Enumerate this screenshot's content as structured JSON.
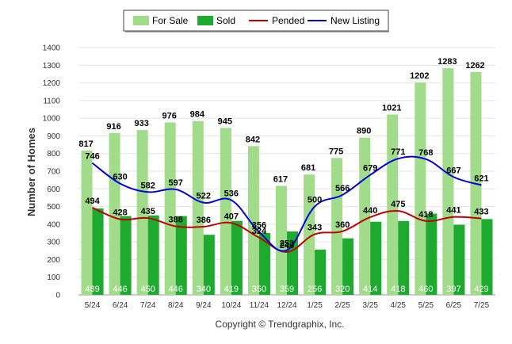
{
  "chart_data": {
    "type": "bar",
    "categories": [
      "5/24",
      "6/24",
      "7/24",
      "8/24",
      "9/24",
      "10/24",
      "11/24",
      "12/24",
      "1/25",
      "2/25",
      "3/25",
      "4/25",
      "5/25",
      "6/25",
      "7/25"
    ],
    "ylabel": "Number of Homes",
    "xlabel": "",
    "ylim": [
      0,
      1400
    ],
    "yticks": [
      0,
      100,
      200,
      300,
      400,
      500,
      600,
      700,
      800,
      900,
      1000,
      1100,
      1200,
      1300,
      1400
    ],
    "grid": true,
    "legend_position": "top",
    "series": [
      {
        "name": "For Sale",
        "type": "bar",
        "color": "#a0dc8a",
        "values": [
          817,
          916,
          933,
          976,
          984,
          945,
          842,
          617,
          681,
          775,
          890,
          1021,
          1202,
          1283,
          1262
        ]
      },
      {
        "name": "Sold",
        "type": "bar",
        "color": "#1eaa2e",
        "values": [
          489,
          446,
          450,
          446,
          340,
          419,
          350,
          359,
          256,
          320,
          414,
          418,
          460,
          397,
          429
        ]
      },
      {
        "name": "Pended",
        "type": "line",
        "color": "#c00000",
        "values": [
          494,
          428,
          435,
          388,
          386,
          407,
          324,
          243,
          343,
          360,
          440,
          475,
          418,
          441,
          433
        ]
      },
      {
        "name": "New Listing",
        "type": "line",
        "color": "#0000e0",
        "values": [
          746,
          630,
          582,
          597,
          522,
          536,
          356,
          253,
          500,
          566,
          679,
          771,
          768,
          667,
          621
        ]
      }
    ]
  },
  "footer": {
    "credit": "Copyright © Trendgraphix, Inc."
  }
}
